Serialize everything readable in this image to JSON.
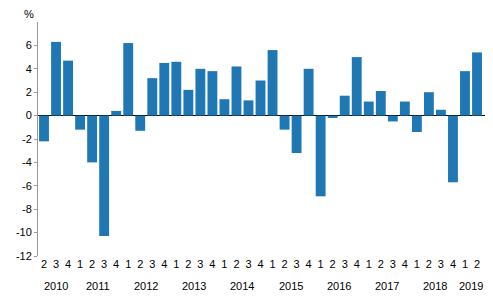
{
  "chart_data": {
    "type": "bar",
    "ylabel": "%",
    "categories": [
      "2",
      "3",
      "4",
      "1",
      "2",
      "3",
      "4",
      "1",
      "2",
      "3",
      "4",
      "1",
      "2",
      "3",
      "4",
      "1",
      "2",
      "3",
      "4",
      "1",
      "2",
      "3",
      "4",
      "1",
      "2",
      "3",
      "4",
      "1",
      "2",
      "3",
      "4",
      "1",
      "2",
      "3",
      "4",
      "1",
      "2"
    ],
    "values": [
      -2.2,
      6.3,
      4.7,
      -1.2,
      -4.0,
      -10.3,
      0.4,
      6.2,
      -1.3,
      3.2,
      4.5,
      4.6,
      2.2,
      4.0,
      3.8,
      1.4,
      4.2,
      1.3,
      3.0,
      5.6,
      -1.2,
      -3.2,
      4.0,
      -6.9,
      -0.2,
      1.7,
      5.0,
      1.2,
      2.1,
      -0.5,
      1.2,
      -1.4,
      2.0,
      0.5,
      -5.7,
      3.8,
      5.4
    ],
    "color": "#1f77b4",
    "ylim": [
      -12,
      8
    ],
    "yticks": [
      -12,
      -10,
      -8,
      -6,
      -4,
      -2,
      0,
      2,
      4,
      6
    ],
    "grid": false,
    "annotations": [
      {
        "text": "2010",
        "x": 1
      },
      {
        "text": "2011",
        "x": 4.5
      },
      {
        "text": "2012",
        "x": 8.5
      },
      {
        "text": "2013",
        "x": 12.5
      },
      {
        "text": "2014",
        "x": 16.5
      },
      {
        "text": "2015",
        "x": 20.5
      },
      {
        "text": "2016",
        "x": 24.5
      },
      {
        "text": "2017",
        "x": 28.5
      },
      {
        "text": "2018",
        "x": 32.5
      },
      {
        "text": "2019",
        "x": 35.5
      }
    ]
  }
}
